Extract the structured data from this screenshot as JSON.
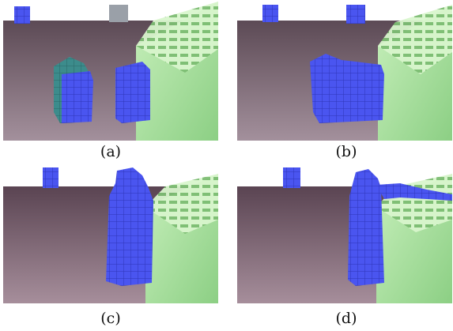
{
  "figure": {
    "panels": [
      {
        "id": "a",
        "caption": "(a)"
      },
      {
        "id": "b",
        "caption": "(b)"
      },
      {
        "id": "c",
        "caption": "(c)"
      },
      {
        "id": "d",
        "caption": "(d)"
      }
    ]
  },
  "colors": {
    "sky": "#ffffff",
    "floor_far": "#6e5763",
    "floor_near": "#a88f9c",
    "wall_light": "#b4e6a8",
    "wall_dark": "#8fcf86",
    "block_blue": "#4a55f0",
    "block_blue_dark": "#2e35b8",
    "block_teal": "#3c8c8c",
    "block_grey": "#9aa0a8"
  }
}
